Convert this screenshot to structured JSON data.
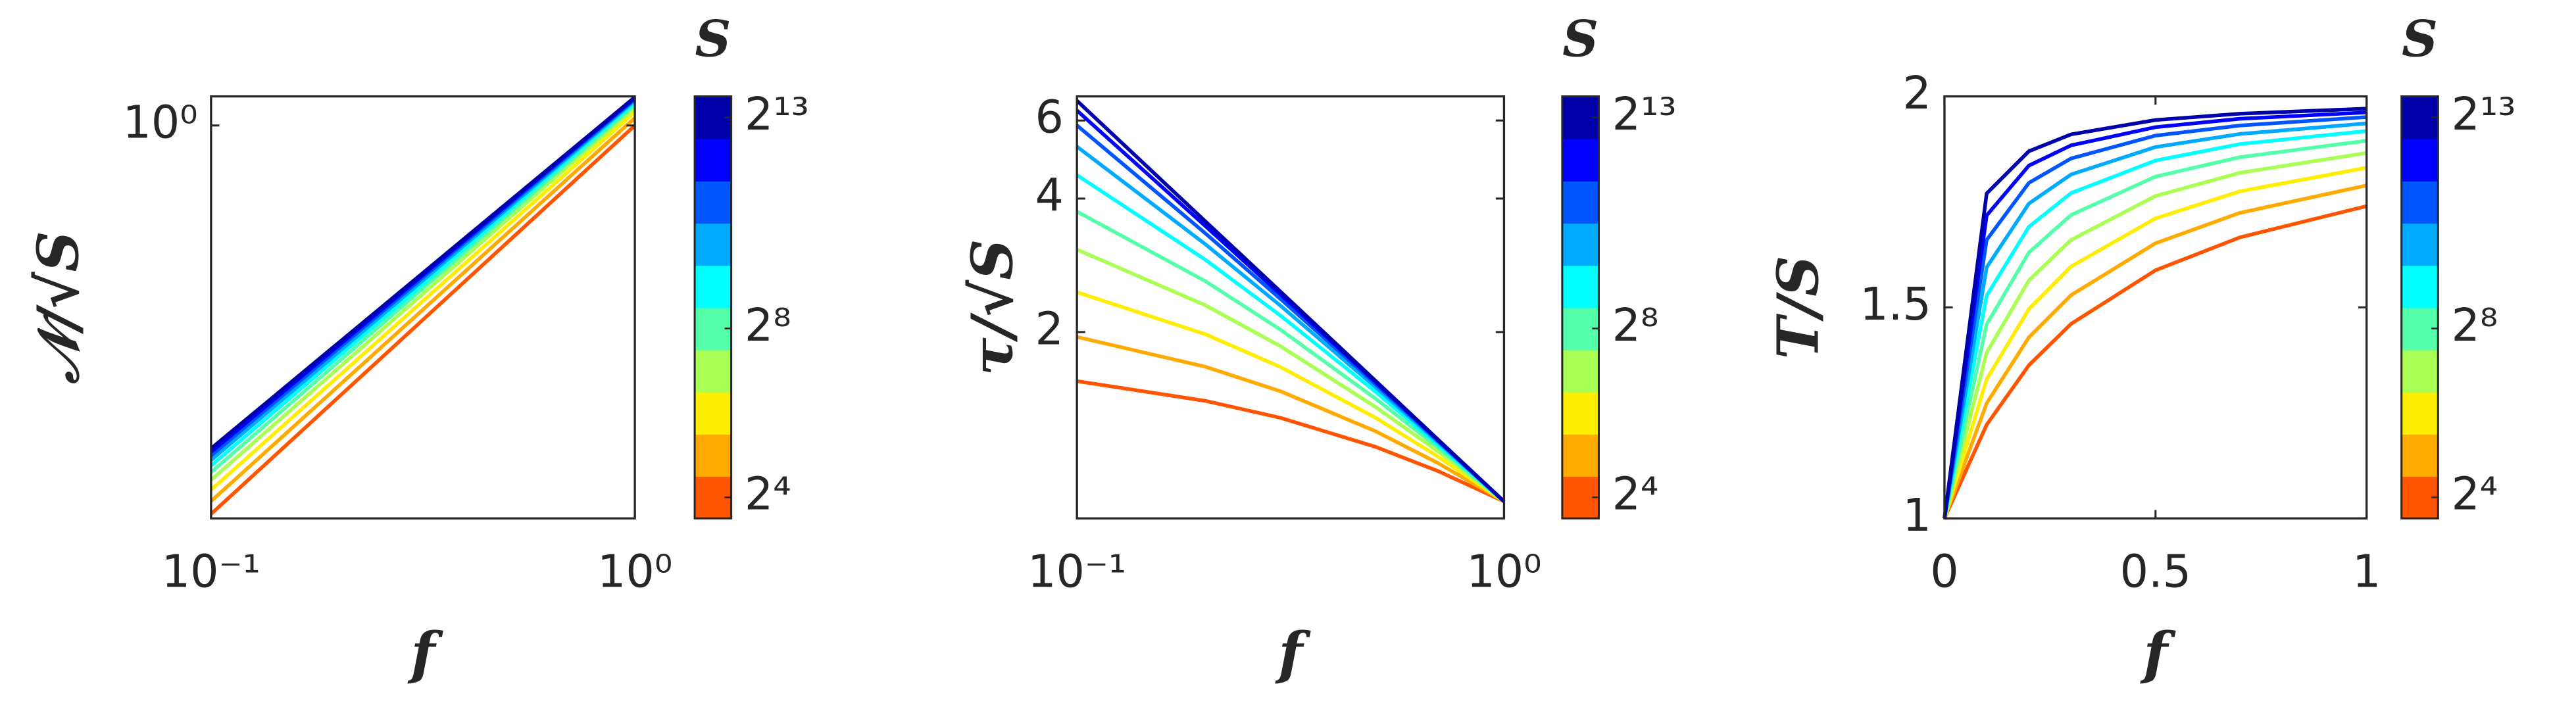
{
  "chart_data": [
    {
      "type": "line",
      "xlog": true,
      "ylog": true,
      "xlabel": "f",
      "ylabel": "𝒩/√S",
      "xlim": [
        0.1,
        1
      ],
      "ylim": [
        0.276,
        1.1
      ],
      "xticks": [
        {
          "value": 0.1,
          "label": "10⁻¹"
        },
        {
          "value": 1,
          "label": "10⁰"
        }
      ],
      "yticks": [
        {
          "value": 1,
          "label": "10⁰"
        }
      ],
      "x": [
        0.1,
        1
      ],
      "series": [
        {
          "color": "#ff5500",
          "values": [
            0.28,
            1.0
          ]
        },
        {
          "color": "#ffaa00",
          "values": [
            0.292,
            1.025
          ]
        },
        {
          "color": "#ffee00",
          "values": [
            0.303,
            1.045
          ]
        },
        {
          "color": "#aaff55",
          "values": [
            0.313,
            1.06
          ]
        },
        {
          "color": "#55ffaa",
          "values": [
            0.321,
            1.07
          ]
        },
        {
          "color": "#00ffff",
          "values": [
            0.328,
            1.078
          ]
        },
        {
          "color": "#00aaff",
          "values": [
            0.334,
            1.085
          ]
        },
        {
          "color": "#0055ff",
          "values": [
            0.339,
            1.09
          ]
        },
        {
          "color": "#0000ff",
          "values": [
            0.343,
            1.094
          ]
        },
        {
          "color": "#0000aa",
          "values": [
            0.347,
            1.097
          ]
        }
      ],
      "colorbar": {
        "title": "S",
        "lim": [
          3.5,
          13.5
        ],
        "ticks": [
          {
            "value": 4,
            "label": "2⁴"
          },
          {
            "value": 8,
            "label": "2⁸"
          },
          {
            "value": 13,
            "label": "2¹³"
          }
        ]
      }
    },
    {
      "type": "line",
      "xlog": true,
      "ylog": true,
      "xlabel": "f",
      "ylabel": "τ/√S",
      "xlim": [
        0.1,
        1
      ],
      "ylim": [
        0.76,
        6.8
      ],
      "xticks": [
        {
          "value": 0.1,
          "label": "10⁻¹"
        },
        {
          "value": 1,
          "label": "10⁰"
        }
      ],
      "yticks": [
        2,
        4,
        6
      ],
      "x": [
        0.1,
        0.2,
        0.3,
        0.5,
        0.7,
        1
      ],
      "series": [
        {
          "color": "#ff5500",
          "values": [
            1.55,
            1.399,
            1.281,
            1.102,
            0.972,
            0.83
          ]
        },
        {
          "color": "#ffaa00",
          "values": [
            1.95,
            1.67,
            1.47,
            1.195,
            1.013,
            0.83
          ]
        },
        {
          "color": "#ffee00",
          "values": [
            2.46,
            1.977,
            1.667,
            1.282,
            1.048,
            0.83
          ]
        },
        {
          "color": "#aaff55",
          "values": [
            3.07,
            2.298,
            1.857,
            1.356,
            1.077,
            0.83
          ]
        },
        {
          "color": "#55ffaa",
          "values": [
            3.74,
            2.604,
            2.023,
            1.416,
            1.099,
            0.83
          ]
        },
        {
          "color": "#00ffff",
          "values": [
            4.52,
            2.91,
            2.177,
            1.467,
            1.116,
            0.83
          ]
        },
        {
          "color": "#00aaff",
          "values": [
            5.24,
            3.154,
            2.291,
            1.503,
            1.129,
            0.83
          ]
        },
        {
          "color": "#0055ff",
          "values": [
            5.85,
            3.338,
            2.373,
            1.527,
            1.137,
            0.83
          ]
        },
        {
          "color": "#0000ff",
          "values": [
            6.32,
            3.466,
            2.429,
            1.543,
            1.142,
            0.83
          ]
        },
        {
          "color": "#0000aa",
          "values": [
            6.65,
            3.552,
            2.465,
            1.553,
            1.145,
            0.83
          ]
        }
      ],
      "colorbar": {
        "title": "S",
        "lim": [
          3.5,
          13.5
        ],
        "ticks": [
          {
            "value": 4,
            "label": "2⁴"
          },
          {
            "value": 8,
            "label": "2⁸"
          },
          {
            "value": 13,
            "label": "2¹³"
          }
        ]
      }
    },
    {
      "type": "line",
      "xlog": false,
      "ylog": false,
      "xlabel": "f",
      "ylabel": "T/S",
      "xlim": [
        0,
        1
      ],
      "ylim": [
        1,
        2
      ],
      "xticks": [
        0,
        0.5,
        1
      ],
      "yticks": [
        1,
        1.5,
        2
      ],
      "x": [
        0,
        0.1,
        0.2,
        0.3,
        0.5,
        0.7,
        1
      ],
      "series": [
        {
          "color": "#ff5500",
          "values": [
            1,
            1.222,
            1.363,
            1.461,
            1.588,
            1.666,
            1.74
          ]
        },
        {
          "color": "#ffaa00",
          "values": [
            1,
            1.273,
            1.429,
            1.529,
            1.652,
            1.724,
            1.789
          ]
        },
        {
          "color": "#ffee00",
          "values": [
            1,
            1.33,
            1.496,
            1.597,
            1.711,
            1.775,
            1.831
          ]
        },
        {
          "color": "#aaff55",
          "values": [
            1,
            1.393,
            1.564,
            1.66,
            1.764,
            1.819,
            1.866
          ]
        },
        {
          "color": "#55ffaa",
          "values": [
            1,
            1.46,
            1.63,
            1.719,
            1.81,
            1.856,
            1.895
          ]
        },
        {
          "color": "#00ffff",
          "values": [
            1,
            1.528,
            1.691,
            1.771,
            1.848,
            1.887,
            1.918
          ]
        },
        {
          "color": "#00aaff",
          "values": [
            1,
            1.595,
            1.746,
            1.815,
            1.88,
            1.911,
            1.936
          ]
        },
        {
          "color": "#0055ff",
          "values": [
            1,
            1.66,
            1.795,
            1.853,
            1.907,
            1.931,
            1.951
          ]
        },
        {
          "color": "#0000ff",
          "values": [
            1,
            1.718,
            1.836,
            1.884,
            1.927,
            1.947,
            1.962
          ]
        },
        {
          "color": "#0000aa",
          "values": [
            1,
            1.77,
            1.87,
            1.91,
            1.944,
            1.959,
            1.971
          ]
        }
      ],
      "colorbar": {
        "title": "S",
        "lim": [
          3.5,
          13.5
        ],
        "ticks": [
          {
            "value": 4,
            "label": "2⁴"
          },
          {
            "value": 8,
            "label": "2⁸"
          },
          {
            "value": 13,
            "label": "2¹³"
          }
        ]
      }
    }
  ]
}
